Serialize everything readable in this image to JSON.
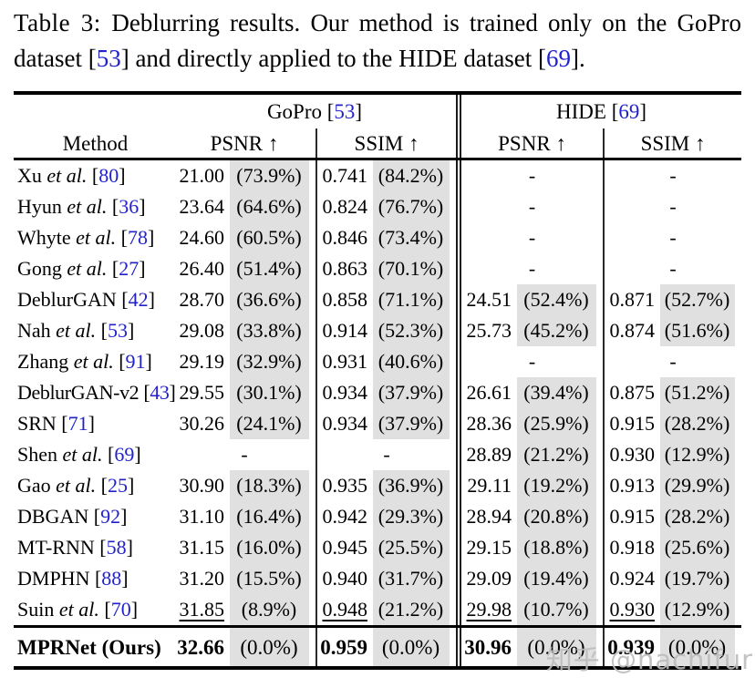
{
  "caption": {
    "segments": [
      {
        "text": "Table 3:  ",
        "kind": "label"
      },
      {
        "text": "Deblurring results. Our method is trained only on the GoPro dataset [",
        "kind": "text"
      },
      {
        "text": "53",
        "kind": "cite"
      },
      {
        "text": "] and directly applied to the HIDE dataset [",
        "kind": "text"
      },
      {
        "text": "69",
        "kind": "cite"
      },
      {
        "text": "].",
        "kind": "text"
      }
    ]
  },
  "table": {
    "header": {
      "method_label": "Method",
      "groups": [
        {
          "name": "GoPro [",
          "cite": "53",
          "close": "]"
        },
        {
          "name": "HIDE [",
          "cite": "69",
          "close": "]"
        }
      ],
      "metrics": [
        "PSNR ↑",
        "SSIM ↑",
        "PSNR ↑",
        "SSIM ↑"
      ]
    },
    "columns": [
      "gopro-psnr",
      "gopro-ssim",
      "hide-psnr",
      "hide-ssim"
    ],
    "rows": [
      {
        "method": {
          "name": "Xu",
          "etal": true,
          "cite": "80"
        },
        "cells": [
          {
            "v": "21.00",
            "p": "(73.9%)"
          },
          {
            "v": "0.741",
            "p": "(84.2%)"
          },
          null,
          null
        ]
      },
      {
        "method": {
          "name": "Hyun",
          "etal": true,
          "cite": "36"
        },
        "cells": [
          {
            "v": "23.64",
            "p": "(64.6%)"
          },
          {
            "v": "0.824",
            "p": "(76.7%)"
          },
          null,
          null
        ]
      },
      {
        "method": {
          "name": "Whyte",
          "etal": true,
          "cite": "78"
        },
        "cells": [
          {
            "v": "24.60",
            "p": "(60.5%)"
          },
          {
            "v": "0.846",
            "p": "(73.4%)"
          },
          null,
          null
        ]
      },
      {
        "method": {
          "name": "Gong",
          "etal": true,
          "cite": "27"
        },
        "cells": [
          {
            "v": "26.40",
            "p": "(51.4%)"
          },
          {
            "v": "0.863",
            "p": "(70.1%)"
          },
          null,
          null
        ]
      },
      {
        "method": {
          "name": "DeblurGAN",
          "etal": false,
          "cite": "42"
        },
        "cells": [
          {
            "v": "28.70",
            "p": "(36.6%)"
          },
          {
            "v": "0.858",
            "p": "(71.1%)"
          },
          {
            "v": "24.51",
            "p": "(52.4%)"
          },
          {
            "v": "0.871",
            "p": "(52.7%)"
          }
        ]
      },
      {
        "method": {
          "name": "Nah",
          "etal": true,
          "cite": "53"
        },
        "cells": [
          {
            "v": "29.08",
            "p": "(33.8%)"
          },
          {
            "v": "0.914",
            "p": "(52.3%)"
          },
          {
            "v": "25.73",
            "p": "(45.2%)"
          },
          {
            "v": "0.874",
            "p": "(51.6%)"
          }
        ]
      },
      {
        "method": {
          "name": "Zhang",
          "etal": true,
          "cite": "91"
        },
        "cells": [
          {
            "v": "29.19",
            "p": "(32.9%)"
          },
          {
            "v": "0.931",
            "p": "(40.6%)"
          },
          null,
          null
        ]
      },
      {
        "method": {
          "name": "DeblurGAN-v2",
          "etal": false,
          "cite": "43",
          "tight": true
        },
        "cells": [
          {
            "v": "29.55",
            "p": "(30.1%)"
          },
          {
            "v": "0.934",
            "p": "(37.9%)"
          },
          {
            "v": "26.61",
            "p": "(39.4%)"
          },
          {
            "v": "0.875",
            "p": "(51.2%)"
          }
        ]
      },
      {
        "method": {
          "name": "SRN",
          "etal": false,
          "cite": "71"
        },
        "cells": [
          {
            "v": "30.26",
            "p": "(24.1%)"
          },
          {
            "v": "0.934",
            "p": "(37.9%)"
          },
          {
            "v": "28.36",
            "p": "(25.9%)"
          },
          {
            "v": "0.915",
            "p": "(28.2%)"
          }
        ]
      },
      {
        "method": {
          "name": "Shen",
          "etal": true,
          "cite": "69"
        },
        "cells": [
          null,
          null,
          {
            "v": "28.89",
            "p": "(21.2%)"
          },
          {
            "v": "0.930",
            "p": "(12.9%)"
          }
        ]
      },
      {
        "method": {
          "name": "Gao",
          "etal": true,
          "cite": "25"
        },
        "cells": [
          {
            "v": "30.90",
            "p": "(18.3%)"
          },
          {
            "v": "0.935",
            "p": "(36.9%)"
          },
          {
            "v": "29.11",
            "p": "(19.2%)"
          },
          {
            "v": "0.913",
            "p": "(29.9%)"
          }
        ]
      },
      {
        "method": {
          "name": "DBGAN",
          "etal": false,
          "cite": "92"
        },
        "cells": [
          {
            "v": "31.10",
            "p": "(16.4%)"
          },
          {
            "v": "0.942",
            "p": "(29.3%)"
          },
          {
            "v": "28.94",
            "p": "(20.8%)"
          },
          {
            "v": "0.915",
            "p": "(28.2%)"
          }
        ]
      },
      {
        "method": {
          "name": "MT-RNN",
          "etal": false,
          "cite": "58"
        },
        "cells": [
          {
            "v": "31.15",
            "p": "(16.0%)"
          },
          {
            "v": "0.945",
            "p": "(25.5%)"
          },
          {
            "v": "29.15",
            "p": "(18.8%)"
          },
          {
            "v": "0.918",
            "p": "(25.6%)"
          }
        ]
      },
      {
        "method": {
          "name": "DMPHN",
          "etal": false,
          "cite": "88"
        },
        "cells": [
          {
            "v": "31.20",
            "p": "(15.5%)"
          },
          {
            "v": "0.940",
            "p": "(31.7%)"
          },
          {
            "v": "29.09",
            "p": "(19.4%)"
          },
          {
            "v": "0.924",
            "p": "(19.7%)"
          }
        ]
      },
      {
        "method": {
          "name": "Suin",
          "etal": true,
          "cite": "70"
        },
        "underline": true,
        "cells": [
          {
            "v": "31.85",
            "p": "(8.9%)"
          },
          {
            "v": "0.948",
            "p": "(21.2%)"
          },
          {
            "v": "29.98",
            "p": "(10.7%)"
          },
          {
            "v": "0.930",
            "p": "(12.9%)"
          }
        ]
      },
      {
        "method": {
          "name": "MPRNet (Ours)",
          "etal": false,
          "cite": null
        },
        "final": true,
        "cells": [
          {
            "v": "32.66",
            "p": "(0.0%)"
          },
          {
            "v": "0.959",
            "p": "(0.0%)"
          },
          {
            "v": "30.96",
            "p": "(0.0%)"
          },
          {
            "v": "0.939",
            "p": "(0.0%)"
          }
        ]
      }
    ],
    "dash": "-"
  },
  "watermark": "知乎 @nachifur",
  "colors": {
    "citation": "#2222cc",
    "cell_shade": "#e0e0e0",
    "rule": "#000000"
  }
}
